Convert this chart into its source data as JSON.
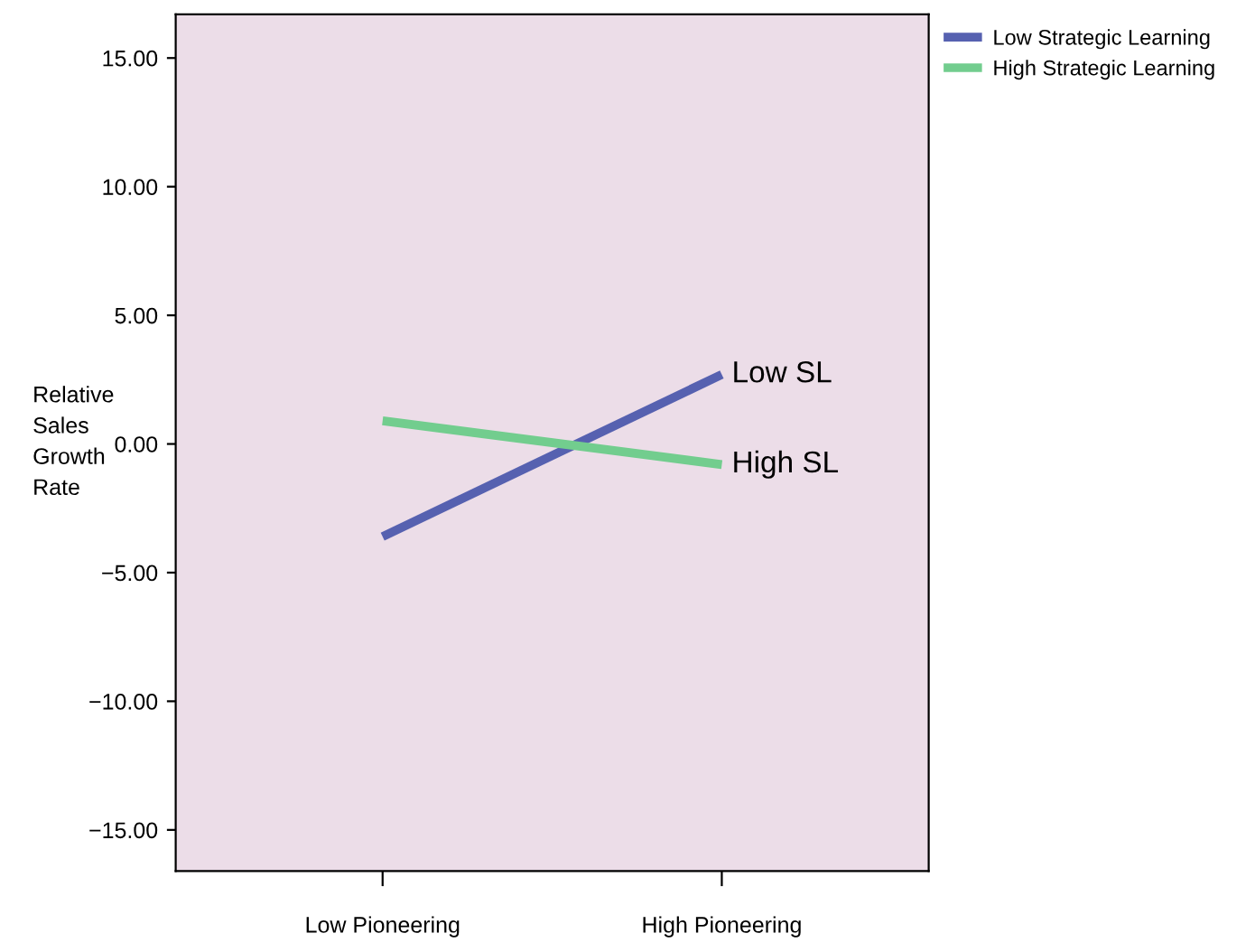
{
  "chart_data": {
    "type": "line",
    "ylabel": "Relative\nSales\nGrowth\nRate",
    "categories": [
      "Low Pioneering",
      "High Pioneering"
    ],
    "series": [
      {
        "name": "Low Strategic Learning",
        "color": "#5661b0",
        "values": [
          -3.6,
          2.7
        ]
      },
      {
        "name": "High Strategic Learning",
        "color": "#72cd8e",
        "values": [
          0.9,
          -0.8
        ]
      }
    ],
    "annotations": [
      {
        "text": "Low SL",
        "x": "High Pioneering",
        "y": 2.7
      },
      {
        "text": "High SL",
        "x": "High Pioneering",
        "y": -0.8
      }
    ],
    "ylim": [
      -16.6,
      16.7
    ],
    "yticks": [
      {
        "value": -15,
        "label": "−15.00"
      },
      {
        "value": -10,
        "label": "−10.00"
      },
      {
        "value": -5,
        "label": "−5.00"
      },
      {
        "value": 0,
        "label": "0.00"
      },
      {
        "value": 5,
        "label": "5.00"
      },
      {
        "value": 10,
        "label": "10.00"
      },
      {
        "value": 15,
        "label": "15.00"
      }
    ],
    "grid": false,
    "legend": "top right",
    "marker": "none",
    "line_style": "solid"
  }
}
